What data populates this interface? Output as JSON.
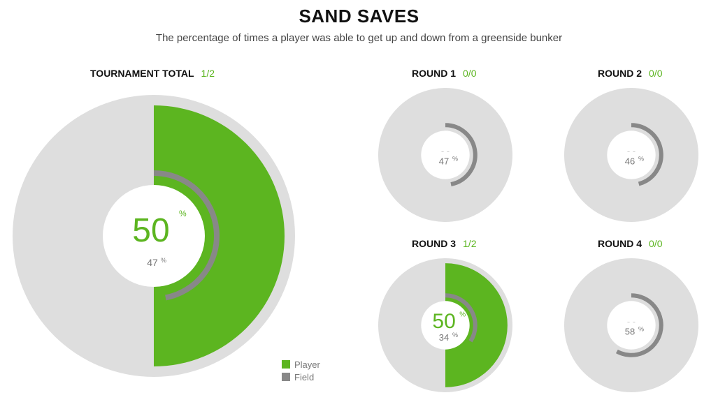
{
  "title": "SAND SAVES",
  "subtitle": "The percentage of times a player was able to get up and down from a greenside bunker",
  "colors": {
    "player": "#5cb520",
    "field": "#888888",
    "track": "#dedede",
    "center": "#ffffff",
    "empty_text": "#cccccc"
  },
  "legend": {
    "player": "Player",
    "field": "Field"
  },
  "chart_data": [
    {
      "type": "radial",
      "label": "TOURNAMENT TOTAL",
      "ratio": "1/2",
      "player_pct": 50,
      "field_pct": 47,
      "player_text": "50",
      "field_text": "47"
    },
    {
      "type": "radial",
      "label": "ROUND 1",
      "ratio": "0/0",
      "player_pct": null,
      "field_pct": 47,
      "player_text": "- -",
      "field_text": "47"
    },
    {
      "type": "radial",
      "label": "ROUND 2",
      "ratio": "0/0",
      "player_pct": null,
      "field_pct": 46,
      "player_text": "- -",
      "field_text": "46"
    },
    {
      "type": "radial",
      "label": "ROUND 3",
      "ratio": "1/2",
      "player_pct": 50,
      "field_pct": 34,
      "player_text": "50",
      "field_text": "34"
    },
    {
      "type": "radial",
      "label": "ROUND 4",
      "ratio": "0/0",
      "player_pct": null,
      "field_pct": 58,
      "player_text": "- -",
      "field_text": "58"
    }
  ]
}
